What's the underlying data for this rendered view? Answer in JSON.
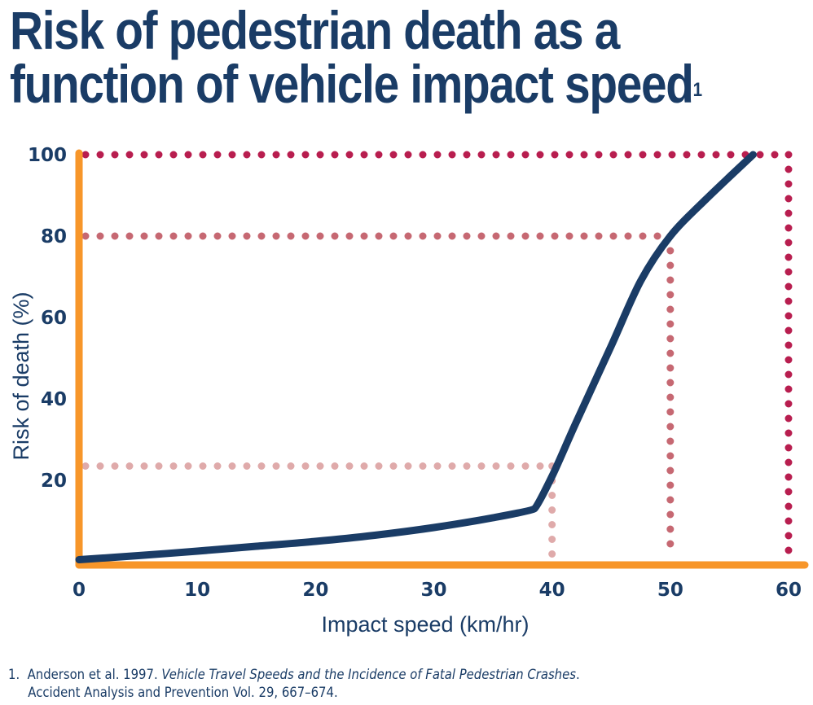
{
  "title": {
    "text": "Risk of pedestrian death as a function of vehicle impact speed",
    "line1": "Risk of pedestrian death as a",
    "line2": "function of vehicle impact speed",
    "footnote_marker": "1"
  },
  "footnote": {
    "number": "1.",
    "authors": "Anderson et al. 1997.",
    "work": "Vehicle Travel Speeds and the Incidence of Fatal Pedestrian Crashes",
    "journal": "Accident Analysis and Prevention Vol. 29, 667–674."
  },
  "colors": {
    "curve": "#1a3c66",
    "axes": "#f7962a",
    "ref100": "#b81e4f",
    "ref80": "#c66872",
    "ref23": "#dfaaaa",
    "text": "#1a3c66"
  },
  "chart_data": {
    "type": "line",
    "title": "Risk of pedestrian death as a function of vehicle impact speed",
    "xlabel": "Impact speed (km/hr)",
    "ylabel": "Risk of death (%)",
    "xlim": [
      0,
      60
    ],
    "ylim": [
      0,
      100
    ],
    "x_ticks": [
      "0",
      "10",
      "20",
      "30",
      "40",
      "50",
      "60"
    ],
    "y_ticks": [
      "20",
      "40",
      "60",
      "80",
      "100"
    ],
    "grid": false,
    "series": [
      {
        "x": [
          0,
          5,
          10,
          15,
          20,
          25,
          30,
          35,
          38.5,
          40,
          42,
          45,
          47.5,
          50,
          53,
          57
        ],
        "y": [
          0.5,
          1.5,
          2.6,
          3.8,
          5,
          6.5,
          8.4,
          10.8,
          13,
          21,
          34,
          53,
          69,
          80,
          89,
          100
        ]
      }
    ],
    "reference_lines": [
      {
        "speed": 40,
        "risk": 23.5
      },
      {
        "speed": 50,
        "risk": 80
      },
      {
        "speed": 60,
        "risk": 100
      }
    ]
  }
}
